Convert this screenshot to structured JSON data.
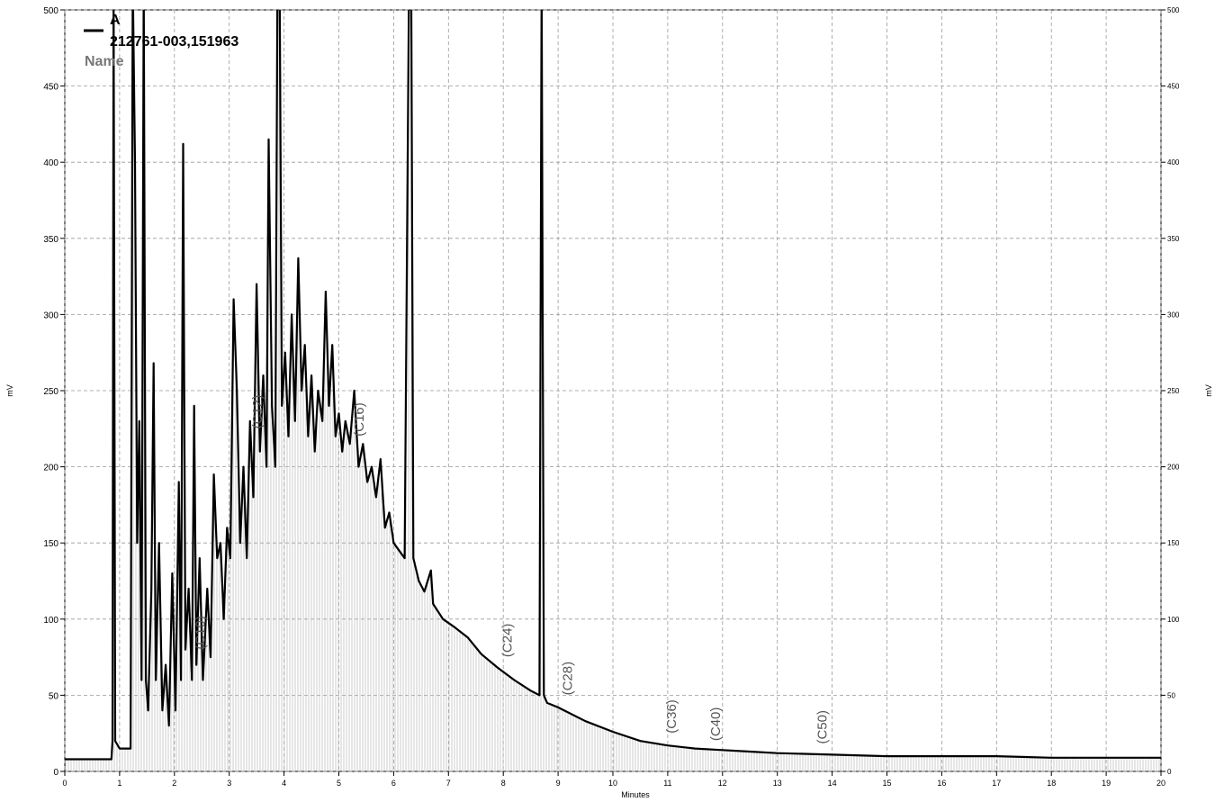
{
  "chart_data": {
    "type": "line",
    "xlabel": "Minutes",
    "ylabel": "mV",
    "y2label": "mV",
    "xlim": [
      0,
      20
    ],
    "ylim": [
      0,
      500
    ],
    "y2lim": [
      0,
      500
    ],
    "xticks": [
      0,
      1,
      2,
      3,
      4,
      5,
      6,
      7,
      8,
      9,
      10,
      11,
      12,
      13,
      14,
      15,
      16,
      17,
      18,
      19,
      20
    ],
    "yticks": [
      0,
      50,
      100,
      150,
      200,
      250,
      300,
      350,
      400,
      450,
      500
    ],
    "y2ticks": [
      0,
      50,
      100,
      150,
      200,
      250,
      300,
      350,
      400,
      450,
      500
    ],
    "grid": true,
    "legend": "upper left",
    "legend_texts": [
      "212761-003,151963",
      "Name"
    ],
    "x": [
      0,
      0.85,
      0.87,
      0.89,
      0.92,
      1.0,
      1.2,
      1.24,
      1.28,
      1.32,
      1.36,
      1.4,
      1.44,
      1.48,
      1.52,
      1.58,
      1.62,
      1.66,
      1.72,
      1.78,
      1.84,
      1.9,
      1.96,
      2.02,
      2.08,
      2.12,
      2.16,
      2.2,
      2.26,
      2.32,
      2.36,
      2.4,
      2.46,
      2.52,
      2.6,
      2.66,
      2.72,
      2.78,
      2.84,
      2.9,
      2.96,
      3.02,
      3.08,
      3.14,
      3.2,
      3.26,
      3.32,
      3.38,
      3.44,
      3.5,
      3.56,
      3.62,
      3.68,
      3.72,
      3.78,
      3.84,
      3.88,
      3.92,
      3.96,
      4.02,
      4.08,
      4.14,
      4.2,
      4.26,
      4.32,
      4.38,
      4.44,
      4.5,
      4.56,
      4.62,
      4.7,
      4.76,
      4.82,
      4.88,
      4.94,
      5.0,
      5.06,
      5.12,
      5.2,
      5.28,
      5.36,
      5.44,
      5.52,
      5.6,
      5.68,
      5.76,
      5.84,
      5.92,
      6.0,
      6.1,
      6.2,
      6.28,
      6.32,
      6.36,
      6.46,
      6.56,
      6.68,
      6.72,
      6.9,
      7.1,
      7.35,
      7.6,
      7.9,
      8.2,
      8.5,
      8.66,
      8.7,
      8.74,
      8.8,
      9.0,
      9.5,
      10,
      10.5,
      11,
      11.5,
      12,
      12.5,
      13,
      14,
      15,
      16,
      17,
      18,
      19,
      20
    ],
    "series": [
      {
        "name": "A",
        "color": "#000000",
        "values": [
          8,
          8,
          20,
          520,
          20,
          15,
          15,
          520,
          400,
          150,
          230,
          60,
          520,
          60,
          40,
          120,
          268,
          60,
          150,
          40,
          70,
          30,
          130,
          40,
          190,
          60,
          412,
          80,
          120,
          60,
          240,
          70,
          140,
          60,
          120,
          75,
          195,
          140,
          150,
          100,
          160,
          140,
          310,
          250,
          150,
          200,
          140,
          230,
          180,
          320,
          210,
          260,
          200,
          415,
          240,
          200,
          520,
          520,
          240,
          275,
          220,
          300,
          230,
          337,
          250,
          280,
          220,
          260,
          210,
          250,
          230,
          315,
          240,
          280,
          220,
          235,
          210,
          230,
          215,
          250,
          200,
          215,
          190,
          200,
          180,
          205,
          160,
          170,
          150,
          145,
          140,
          520,
          520,
          140,
          125,
          118,
          132,
          110,
          100,
          95,
          88,
          77,
          68,
          60,
          53,
          50,
          520,
          50,
          45,
          42,
          33,
          26,
          20,
          17,
          15,
          14,
          13,
          12,
          11,
          10,
          10,
          10,
          9,
          9,
          9
        ]
      }
    ],
    "annotations": [
      {
        "text": "(C10)",
        "x": 2.55,
        "y": 80
      },
      {
        "text": "(C12)",
        "x": 3.6,
        "y": 225
      },
      {
        "text": "(C16)",
        "x": 5.45,
        "y": 220
      },
      {
        "text": "(C24)",
        "x": 8.15,
        "y": 75
      },
      {
        "text": "(C28)",
        "x": 9.25,
        "y": 50
      },
      {
        "text": "(C36)",
        "x": 11.15,
        "y": 25
      },
      {
        "text": "(C40)",
        "x": 11.95,
        "y": 20
      },
      {
        "text": "(C50)",
        "x": 13.9,
        "y": 18
      }
    ]
  }
}
